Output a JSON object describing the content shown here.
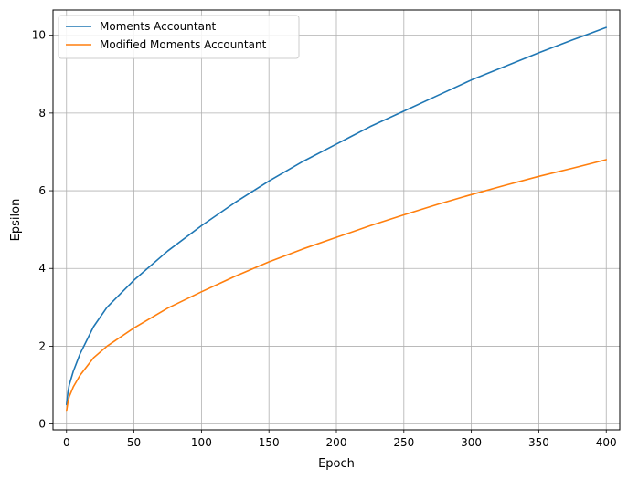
{
  "chart_data": {
    "type": "line",
    "title": "",
    "xlabel": "Epoch",
    "ylabel": "Epsilon",
    "xlim": [
      -10,
      410
    ],
    "ylim": [
      -0.15,
      10.65
    ],
    "xticks": [
      0,
      50,
      100,
      150,
      200,
      250,
      300,
      350,
      400
    ],
    "yticks": [
      0,
      2,
      4,
      6,
      8,
      10
    ],
    "grid": true,
    "legend_position": "top-left",
    "series": [
      {
        "name": "Moments Accountant",
        "color": "#1f77b4",
        "x": [
          0,
          1,
          2,
          5,
          10,
          20,
          30,
          50,
          75,
          100,
          125,
          150,
          175,
          200,
          225,
          250,
          275,
          300,
          325,
          350,
          375,
          400
        ],
        "y": [
          0.5,
          0.8,
          1.0,
          1.35,
          1.8,
          2.5,
          3.0,
          3.7,
          4.45,
          5.1,
          5.7,
          6.25,
          6.75,
          7.2,
          7.65,
          8.05,
          8.45,
          8.85,
          9.2,
          9.55,
          9.88,
          10.2
        ]
      },
      {
        "name": "Modified Moments Accountant",
        "color": "#ff7f0e",
        "x": [
          0,
          1,
          2,
          5,
          10,
          20,
          30,
          50,
          75,
          100,
          125,
          150,
          175,
          200,
          225,
          250,
          275,
          300,
          325,
          350,
          375,
          400
        ],
        "y": [
          0.33,
          0.55,
          0.7,
          0.95,
          1.25,
          1.7,
          2.0,
          2.47,
          2.98,
          3.4,
          3.8,
          4.17,
          4.5,
          4.8,
          5.1,
          5.38,
          5.65,
          5.9,
          6.14,
          6.37,
          6.58,
          6.8
        ]
      }
    ]
  }
}
